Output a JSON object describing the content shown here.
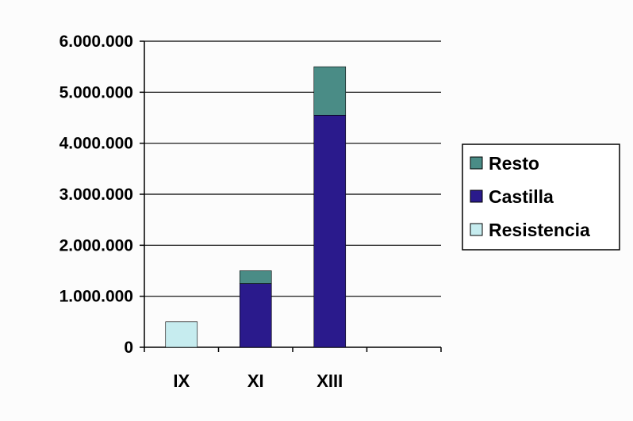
{
  "chart_data": {
    "type": "bar",
    "stacked": true,
    "categories": [
      "IX",
      "XI",
      "XIII",
      ""
    ],
    "series": [
      {
        "name": "Resistencia",
        "values": [
          500000,
          0,
          0,
          0
        ],
        "color": "#c6ecef"
      },
      {
        "name": "Castilla",
        "values": [
          0,
          1250000,
          4550000,
          0
        ],
        "color": "#2a1a8c"
      },
      {
        "name": "Resto",
        "values": [
          0,
          250000,
          950000,
          0
        ],
        "color": "#4a8c86"
      }
    ],
    "legend_order": [
      "Resto",
      "Castilla",
      "Resistencia"
    ],
    "ylim": [
      0,
      6000000
    ],
    "yticks": [
      0,
      1000000,
      2000000,
      3000000,
      4000000,
      5000000,
      6000000
    ],
    "ytick_labels": [
      "0",
      "1.000.000",
      "2.000.000",
      "3.000.000",
      "4.000.000",
      "5.000.000",
      "6.000.000"
    ],
    "grid": true,
    "legend_position": "right",
    "title": "",
    "xlabel": "",
    "ylabel": ""
  }
}
